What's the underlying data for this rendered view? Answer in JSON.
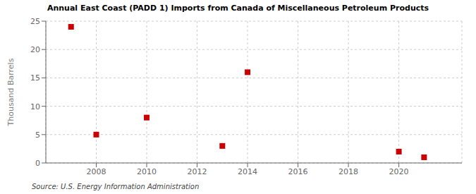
{
  "chart_data": {
    "type": "scatter",
    "title": "Annual East Coast (PADD 1) Imports from Canada of Miscellaneous Petroleum Products",
    "ylabel": "Thousand Barrels",
    "annotations": [
      "Source: U.S. Energy Information Administration"
    ],
    "x": [
      2007,
      2008,
      2010,
      2013,
      2014,
      2020,
      2021
    ],
    "values": [
      24,
      5,
      8,
      3,
      16,
      2,
      1
    ],
    "color": "#cc0000",
    "marker": "square",
    "xlim": [
      2006.0,
      2022.5
    ],
    "xticks": [
      2008,
      2010,
      2012,
      2014,
      2016,
      2018,
      2020
    ],
    "ylim": [
      0,
      25
    ],
    "yticks": [
      0,
      5,
      10,
      15,
      20,
      25
    ],
    "grid": true
  }
}
